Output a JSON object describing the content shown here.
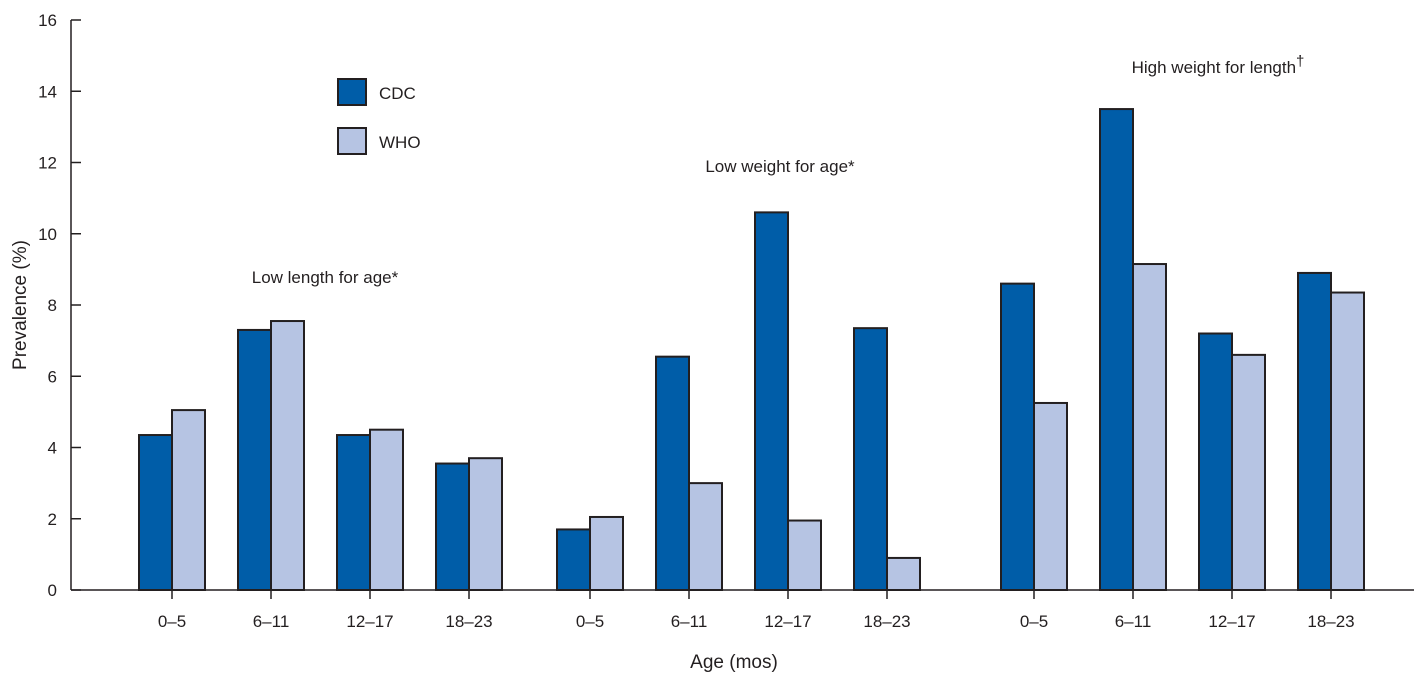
{
  "chart_data": {
    "type": "bar",
    "ylabel": "Prevalence (%)",
    "xlabel": "Age (mos)",
    "ylim": [
      0,
      16
    ],
    "yticks": [
      0,
      2,
      4,
      6,
      8,
      10,
      12,
      14,
      16
    ],
    "grid": false,
    "legend_position": "top-left",
    "series": [
      {
        "name": "CDC",
        "color": "#005da8"
      },
      {
        "name": "WHO",
        "color": "#b6c4e3"
      }
    ],
    "groups": [
      {
        "label": "Low length for age*",
        "categories": [
          "0–5",
          "6–11",
          "12–17",
          "18–23"
        ],
        "CDC": [
          4.35,
          7.3,
          4.35,
          3.55
        ],
        "WHO": [
          5.05,
          7.55,
          4.5,
          3.7
        ]
      },
      {
        "label": "Low weight for age*",
        "categories": [
          "0–5",
          "6–11",
          "12–17",
          "18–23"
        ],
        "CDC": [
          1.7,
          6.55,
          10.6,
          7.35
        ],
        "WHO": [
          2.05,
          3.0,
          1.95,
          0.9
        ]
      },
      {
        "label": "High weight for length†",
        "categories": [
          "0–5",
          "6–11",
          "12–17",
          "18–23"
        ],
        "CDC": [
          8.6,
          13.5,
          7.2,
          8.9
        ],
        "WHO": [
          5.25,
          9.15,
          6.6,
          8.35
        ]
      }
    ]
  }
}
